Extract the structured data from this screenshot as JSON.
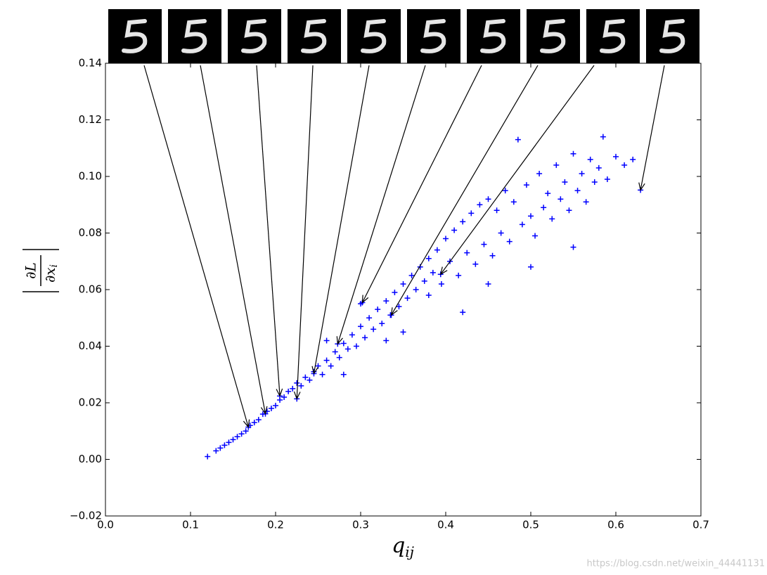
{
  "chart_data": {
    "type": "scatter",
    "x_label": {
      "base": "q",
      "sub": "ij"
    },
    "y_label": {
      "numerator": "∂L",
      "denominator": "∂x",
      "sub": "i"
    },
    "xlim": [
      0,
      0.7
    ],
    "ylim": [
      -0.02,
      0.14
    ],
    "xticks": [
      {
        "value": 0,
        "label": "0.0"
      },
      0.1,
      0.2,
      0.3,
      0.4,
      0.5,
      0.6,
      0.7
    ],
    "yticks": [
      {
        "value": -0.02,
        "label": "−0.02"
      },
      {
        "value": 0,
        "label": "0.00"
      },
      0.02,
      0.04,
      0.06,
      0.08,
      {
        "value": 0.1,
        "label": "0.10"
      },
      0.12,
      0.14
    ],
    "series": [
      {
        "color": "#0000ff",
        "x": [
          0.12,
          0.13,
          0.135,
          0.14,
          0.145,
          0.15,
          0.155,
          0.16,
          0.165,
          0.17,
          0.175,
          0.18,
          0.185,
          0.19,
          0.195,
          0.2,
          0.205,
          0.21,
          0.215,
          0.22,
          0.225,
          0.23,
          0.235,
          0.24,
          0.245,
          0.25,
          0.255,
          0.26,
          0.265,
          0.27,
          0.275,
          0.28,
          0.285,
          0.29,
          0.295,
          0.3,
          0.305,
          0.31,
          0.315,
          0.32,
          0.325,
          0.33,
          0.335,
          0.34,
          0.345,
          0.35,
          0.355,
          0.36,
          0.365,
          0.37,
          0.375,
          0.38,
          0.385,
          0.39,
          0.395,
          0.4,
          0.405,
          0.41,
          0.415,
          0.42,
          0.425,
          0.43,
          0.435,
          0.44,
          0.445,
          0.45,
          0.455,
          0.46,
          0.465,
          0.47,
          0.475,
          0.48,
          0.485,
          0.49,
          0.495,
          0.5,
          0.505,
          0.51,
          0.515,
          0.52,
          0.525,
          0.53,
          0.535,
          0.54,
          0.545,
          0.55,
          0.555,
          0.56,
          0.565,
          0.57,
          0.575,
          0.58,
          0.585,
          0.59,
          0.6,
          0.61,
          0.62,
          0.42,
          0.5,
          0.35,
          0.28,
          0.45,
          0.55,
          0.38,
          0.33,
          0.3,
          0.26
        ],
        "values": [
          0.001,
          0.003,
          0.004,
          0.005,
          0.006,
          0.007,
          0.008,
          0.009,
          0.01,
          0.012,
          0.013,
          0.014,
          0.016,
          0.017,
          0.018,
          0.019,
          0.021,
          0.022,
          0.024,
          0.025,
          0.027,
          0.026,
          0.029,
          0.028,
          0.031,
          0.033,
          0.03,
          0.035,
          0.033,
          0.038,
          0.036,
          0.041,
          0.039,
          0.044,
          0.04,
          0.047,
          0.043,
          0.05,
          0.046,
          0.053,
          0.048,
          0.056,
          0.051,
          0.059,
          0.054,
          0.062,
          0.057,
          0.065,
          0.06,
          0.068,
          0.063,
          0.071,
          0.066,
          0.074,
          0.062,
          0.078,
          0.07,
          0.081,
          0.065,
          0.084,
          0.073,
          0.087,
          0.069,
          0.09,
          0.076,
          0.092,
          0.072,
          0.088,
          0.08,
          0.095,
          0.077,
          0.091,
          0.113,
          0.083,
          0.097,
          0.086,
          0.079,
          0.101,
          0.089,
          0.094,
          0.085,
          0.104,
          0.092,
          0.098,
          0.088,
          0.108,
          0.095,
          0.101,
          0.091,
          0.106,
          0.098,
          0.103,
          0.114,
          0.099,
          0.107,
          0.104,
          0.106,
          0.052,
          0.068,
          0.045,
          0.03,
          0.062,
          0.075,
          0.058,
          0.042,
          0.055,
          0.042
        ]
      }
    ],
    "highlighted": {
      "x": [
        0.168,
        0.188,
        0.205,
        0.225,
        0.245,
        0.273,
        0.302,
        0.336,
        0.394,
        0.629
      ],
      "values": [
        0.0114,
        0.0161,
        0.0224,
        0.0214,
        0.0303,
        0.0408,
        0.0554,
        0.051,
        0.0654,
        0.0952
      ]
    }
  },
  "watermark": "https://blog.csdn.net/weixin_44441131"
}
